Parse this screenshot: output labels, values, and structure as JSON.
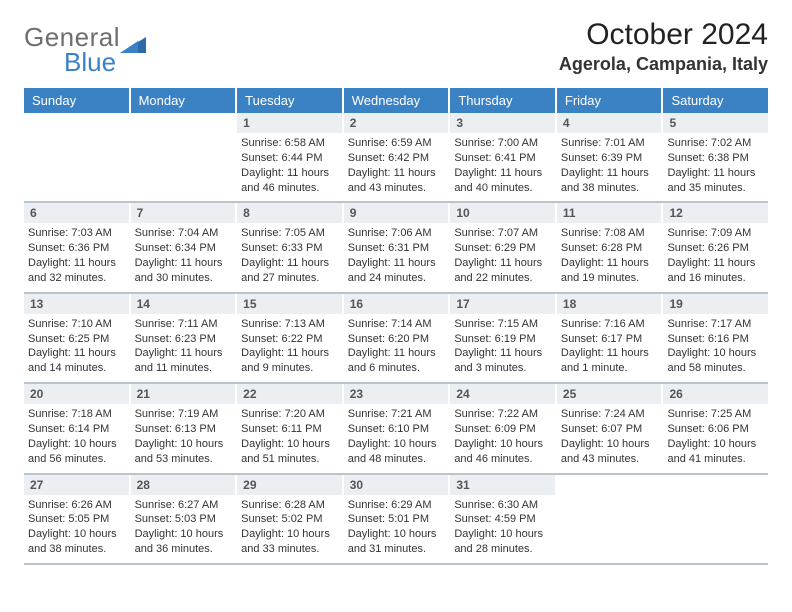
{
  "logo": {
    "general": "General",
    "blue": "Blue"
  },
  "title": "October 2024",
  "location": "Agerola, Campania, Italy",
  "colors": {
    "headerBg": "#3b82c4",
    "headerText": "#ffffff",
    "dayNumBg": "#eceff2",
    "dayNumText": "#555555",
    "bodyText": "#333333",
    "weekDivider": "#b8c4d0",
    "pageBg": "#ffffff",
    "logoGray": "#6e6e6e",
    "logoBlue": "#3b82c4"
  },
  "daysOfWeek": [
    "Sunday",
    "Monday",
    "Tuesday",
    "Wednesday",
    "Thursday",
    "Friday",
    "Saturday"
  ],
  "weeks": [
    [
      {
        "n": "",
        "sr": "",
        "ss": "",
        "dl": ""
      },
      {
        "n": "",
        "sr": "",
        "ss": "",
        "dl": ""
      },
      {
        "n": "1",
        "sr": "Sunrise: 6:58 AM",
        "ss": "Sunset: 6:44 PM",
        "dl": "Daylight: 11 hours and 46 minutes."
      },
      {
        "n": "2",
        "sr": "Sunrise: 6:59 AM",
        "ss": "Sunset: 6:42 PM",
        "dl": "Daylight: 11 hours and 43 minutes."
      },
      {
        "n": "3",
        "sr": "Sunrise: 7:00 AM",
        "ss": "Sunset: 6:41 PM",
        "dl": "Daylight: 11 hours and 40 minutes."
      },
      {
        "n": "4",
        "sr": "Sunrise: 7:01 AM",
        "ss": "Sunset: 6:39 PM",
        "dl": "Daylight: 11 hours and 38 minutes."
      },
      {
        "n": "5",
        "sr": "Sunrise: 7:02 AM",
        "ss": "Sunset: 6:38 PM",
        "dl": "Daylight: 11 hours and 35 minutes."
      }
    ],
    [
      {
        "n": "6",
        "sr": "Sunrise: 7:03 AM",
        "ss": "Sunset: 6:36 PM",
        "dl": "Daylight: 11 hours and 32 minutes."
      },
      {
        "n": "7",
        "sr": "Sunrise: 7:04 AM",
        "ss": "Sunset: 6:34 PM",
        "dl": "Daylight: 11 hours and 30 minutes."
      },
      {
        "n": "8",
        "sr": "Sunrise: 7:05 AM",
        "ss": "Sunset: 6:33 PM",
        "dl": "Daylight: 11 hours and 27 minutes."
      },
      {
        "n": "9",
        "sr": "Sunrise: 7:06 AM",
        "ss": "Sunset: 6:31 PM",
        "dl": "Daylight: 11 hours and 24 minutes."
      },
      {
        "n": "10",
        "sr": "Sunrise: 7:07 AM",
        "ss": "Sunset: 6:29 PM",
        "dl": "Daylight: 11 hours and 22 minutes."
      },
      {
        "n": "11",
        "sr": "Sunrise: 7:08 AM",
        "ss": "Sunset: 6:28 PM",
        "dl": "Daylight: 11 hours and 19 minutes."
      },
      {
        "n": "12",
        "sr": "Sunrise: 7:09 AM",
        "ss": "Sunset: 6:26 PM",
        "dl": "Daylight: 11 hours and 16 minutes."
      }
    ],
    [
      {
        "n": "13",
        "sr": "Sunrise: 7:10 AM",
        "ss": "Sunset: 6:25 PM",
        "dl": "Daylight: 11 hours and 14 minutes."
      },
      {
        "n": "14",
        "sr": "Sunrise: 7:11 AM",
        "ss": "Sunset: 6:23 PM",
        "dl": "Daylight: 11 hours and 11 minutes."
      },
      {
        "n": "15",
        "sr": "Sunrise: 7:13 AM",
        "ss": "Sunset: 6:22 PM",
        "dl": "Daylight: 11 hours and 9 minutes."
      },
      {
        "n": "16",
        "sr": "Sunrise: 7:14 AM",
        "ss": "Sunset: 6:20 PM",
        "dl": "Daylight: 11 hours and 6 minutes."
      },
      {
        "n": "17",
        "sr": "Sunrise: 7:15 AM",
        "ss": "Sunset: 6:19 PM",
        "dl": "Daylight: 11 hours and 3 minutes."
      },
      {
        "n": "18",
        "sr": "Sunrise: 7:16 AM",
        "ss": "Sunset: 6:17 PM",
        "dl": "Daylight: 11 hours and 1 minute."
      },
      {
        "n": "19",
        "sr": "Sunrise: 7:17 AM",
        "ss": "Sunset: 6:16 PM",
        "dl": "Daylight: 10 hours and 58 minutes."
      }
    ],
    [
      {
        "n": "20",
        "sr": "Sunrise: 7:18 AM",
        "ss": "Sunset: 6:14 PM",
        "dl": "Daylight: 10 hours and 56 minutes."
      },
      {
        "n": "21",
        "sr": "Sunrise: 7:19 AM",
        "ss": "Sunset: 6:13 PM",
        "dl": "Daylight: 10 hours and 53 minutes."
      },
      {
        "n": "22",
        "sr": "Sunrise: 7:20 AM",
        "ss": "Sunset: 6:11 PM",
        "dl": "Daylight: 10 hours and 51 minutes."
      },
      {
        "n": "23",
        "sr": "Sunrise: 7:21 AM",
        "ss": "Sunset: 6:10 PM",
        "dl": "Daylight: 10 hours and 48 minutes."
      },
      {
        "n": "24",
        "sr": "Sunrise: 7:22 AM",
        "ss": "Sunset: 6:09 PM",
        "dl": "Daylight: 10 hours and 46 minutes."
      },
      {
        "n": "25",
        "sr": "Sunrise: 7:24 AM",
        "ss": "Sunset: 6:07 PM",
        "dl": "Daylight: 10 hours and 43 minutes."
      },
      {
        "n": "26",
        "sr": "Sunrise: 7:25 AM",
        "ss": "Sunset: 6:06 PM",
        "dl": "Daylight: 10 hours and 41 minutes."
      }
    ],
    [
      {
        "n": "27",
        "sr": "Sunrise: 6:26 AM",
        "ss": "Sunset: 5:05 PM",
        "dl": "Daylight: 10 hours and 38 minutes."
      },
      {
        "n": "28",
        "sr": "Sunrise: 6:27 AM",
        "ss": "Sunset: 5:03 PM",
        "dl": "Daylight: 10 hours and 36 minutes."
      },
      {
        "n": "29",
        "sr": "Sunrise: 6:28 AM",
        "ss": "Sunset: 5:02 PM",
        "dl": "Daylight: 10 hours and 33 minutes."
      },
      {
        "n": "30",
        "sr": "Sunrise: 6:29 AM",
        "ss": "Sunset: 5:01 PM",
        "dl": "Daylight: 10 hours and 31 minutes."
      },
      {
        "n": "31",
        "sr": "Sunrise: 6:30 AM",
        "ss": "Sunset: 4:59 PM",
        "dl": "Daylight: 10 hours and 28 minutes."
      },
      {
        "n": "",
        "sr": "",
        "ss": "",
        "dl": ""
      },
      {
        "n": "",
        "sr": "",
        "ss": "",
        "dl": ""
      }
    ]
  ]
}
